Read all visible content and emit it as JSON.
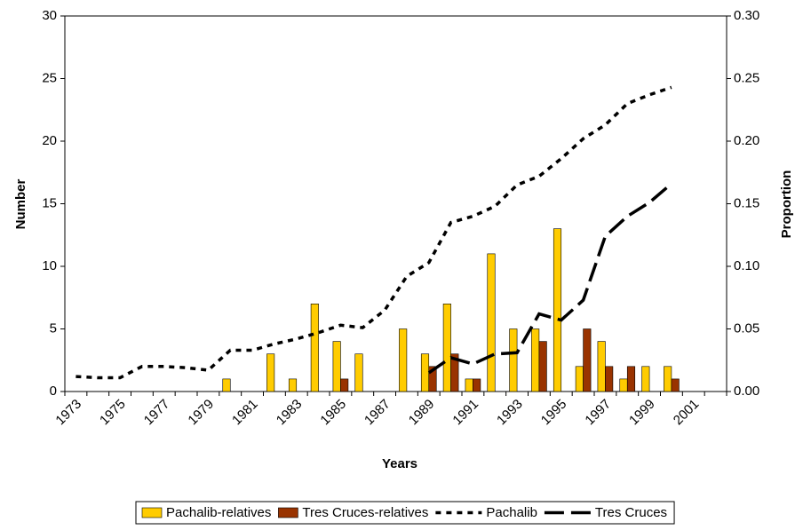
{
  "chart_data": {
    "type": "bar",
    "xlabel": "Years",
    "ylabel": "Number",
    "y2label": "Proportion",
    "categories": [
      "1973",
      null,
      "1975",
      null,
      "1977",
      null,
      "1979",
      null,
      "1981",
      null,
      "1983",
      null,
      "1985",
      null,
      "1987",
      null,
      "1989",
      null,
      "1991",
      null,
      "1993",
      null,
      "1995",
      null,
      "1997",
      null,
      "1999",
      null,
      "2001",
      null
    ],
    "ylim": [
      0,
      30
    ],
    "yticks": [
      0,
      5,
      10,
      15,
      20,
      25,
      30
    ],
    "y2lim": [
      0,
      0.3
    ],
    "y2ticks": [
      {
        "value": 0,
        "label": "0.00"
      },
      0.05,
      {
        "value": 0.1,
        "label": "0.10"
      },
      0.15,
      {
        "value": 0.2,
        "label": "0.20"
      },
      0.25,
      {
        "value": 0.3,
        "label": "0.30"
      }
    ],
    "legend": "bottom",
    "series": [
      {
        "name": "Pachalib-relatives",
        "type": "bar",
        "color": "#ffcc00",
        "values": [
          0,
          0,
          0,
          0,
          0,
          0,
          0,
          1,
          0,
          3,
          1,
          7,
          4,
          3,
          0,
          5,
          3,
          7,
          1,
          11,
          5,
          5,
          13,
          2,
          4,
          1,
          2,
          2,
          0,
          0
        ]
      },
      {
        "name": "Tres Cruces-relatives",
        "type": "bar",
        "color": "#993300",
        "values": [
          0,
          0,
          0,
          0,
          0,
          0,
          0,
          0,
          0,
          0,
          0,
          0,
          1,
          0,
          0,
          0,
          2,
          3,
          1,
          0,
          0,
          4,
          0,
          5,
          2,
          2,
          0,
          1,
          0,
          0
        ]
      },
      {
        "name": "Pachalib",
        "type": "line",
        "axis": "y2",
        "color": "#000000",
        "dash": "short",
        "values": [
          0.012,
          0.011,
          0.011,
          0.02,
          0.02,
          0.019,
          0.017,
          0.033,
          0.033,
          0.038,
          0.042,
          0.047,
          0.053,
          0.051,
          0.065,
          0.092,
          0.103,
          0.135,
          0.14,
          0.148,
          0.165,
          0.172,
          0.186,
          0.202,
          0.213,
          0.23,
          0.237,
          0.243,
          null,
          null
        ]
      },
      {
        "name": "Tres Cruces",
        "type": "line",
        "axis": "y2",
        "color": "#000000",
        "dash": "long",
        "values": [
          null,
          null,
          null,
          null,
          null,
          null,
          null,
          null,
          null,
          null,
          null,
          null,
          null,
          null,
          null,
          null,
          0.015,
          0.027,
          0.022,
          0.03,
          0.031,
          0.062,
          0.057,
          0.073,
          0.124,
          0.14,
          0.151,
          0.166,
          null,
          null
        ]
      }
    ]
  }
}
